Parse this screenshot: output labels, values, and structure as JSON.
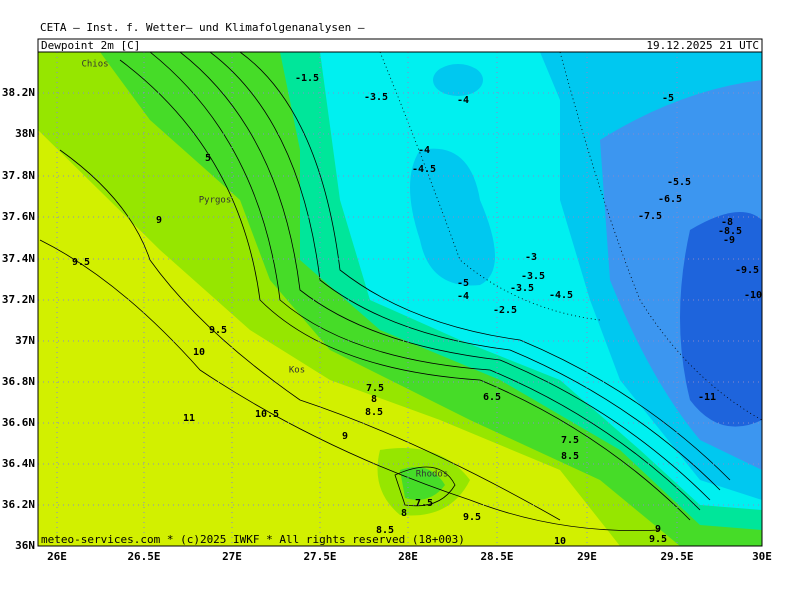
{
  "header": {
    "source": "CETA – Inst. f. Wetter– und Klimafolgenanalysen –",
    "field": "Dewpoint 2m [C]",
    "valid": "19.12.2025 21 UTC"
  },
  "map": {
    "lat_ticks": [
      "36N",
      "36.2N",
      "36.4N",
      "36.6N",
      "36.8N",
      "37N",
      "37.2N",
      "37.4N",
      "37.6N",
      "37.8N",
      "38N",
      "38.2N"
    ],
    "lon_ticks": [
      "26E",
      "26.5E",
      "27E",
      "27.5E",
      "28E",
      "28.5E",
      "29E",
      "29.5E",
      "30E"
    ],
    "places": [
      "Chios",
      "Pyrgos",
      "Kos",
      "Rhodos"
    ],
    "contour_labels": [
      "-1.5",
      "-3.5",
      "-4",
      "-5",
      "-4",
      "-4.5",
      "5",
      "9",
      "9.5",
      "-5.5",
      "-6.5",
      "-7.5",
      "-8",
      "-8.5",
      "-9",
      "-9.5",
      "-10",
      "-3",
      "-3.5",
      "-3.5",
      "-5",
      "-4",
      "-4.5",
      "-2.5",
      "9.5",
      "10",
      "7.5",
      "8",
      "8.5",
      "6.5",
      "11",
      "10.5",
      "9",
      "7.5",
      "8.5",
      "-11",
      "7.5",
      "8",
      "9.5",
      "8.5",
      "9",
      "9.5",
      "10"
    ]
  },
  "footer": "meteo-services.com * (c)2025 IWKF * All rights reserved (18+003)"
}
